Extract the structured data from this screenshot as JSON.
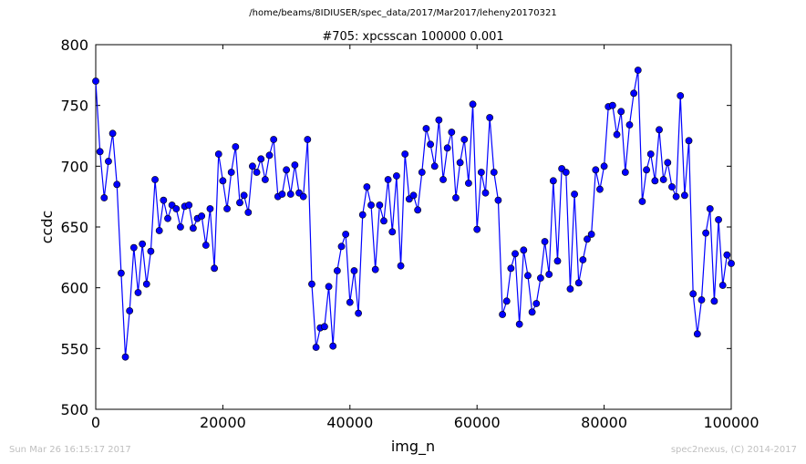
{
  "suptitle": "/home/beams/8IDIUSER/spec_data/2017/Mar2017/leheny20170321",
  "footer": {
    "timestamp": "Sun Mar 26 16:15:17 2017",
    "credit": "spec2nexus, (C) 2014-2017"
  },
  "colors": {
    "series": "#0000ff",
    "marker_fill": "#0000ff",
    "marker_edge": "#000000"
  },
  "chart_data": {
    "type": "line",
    "title": "#705: xpcsscan 100000 0.001",
    "xlabel": "img_n",
    "ylabel": "ccdc",
    "xlim": [
      0,
      100000
    ],
    "ylim": [
      500,
      800
    ],
    "xticks": [
      0,
      20000,
      40000,
      60000,
      80000,
      100000
    ],
    "yticks": [
      500,
      550,
      600,
      650,
      700,
      750,
      800
    ],
    "grid": false,
    "x": [
      0,
      667,
      1333,
      2000,
      2667,
      3333,
      4000,
      4667,
      5333,
      6000,
      6667,
      7333,
      8000,
      8667,
      9333,
      10000,
      10667,
      11333,
      12000,
      12667,
      13333,
      14000,
      14667,
      15333,
      16000,
      16667,
      17333,
      18000,
      18667,
      19333,
      20000,
      20667,
      21333,
      22000,
      22667,
      23333,
      24000,
      24667,
      25333,
      26000,
      26667,
      27333,
      28000,
      28667,
      29333,
      30000,
      30667,
      31333,
      32000,
      32667,
      33333,
      34000,
      34667,
      35333,
      36000,
      36667,
      37333,
      38000,
      38667,
      39333,
      40000,
      40667,
      41333,
      42000,
      42667,
      43333,
      44000,
      44667,
      45333,
      46000,
      46667,
      47333,
      48000,
      48667,
      49333,
      50000,
      50667,
      51333,
      52000,
      52667,
      53333,
      54000,
      54667,
      55333,
      56000,
      56667,
      57333,
      58000,
      58667,
      59333,
      60000,
      60667,
      61333,
      62000,
      62667,
      63333,
      64000,
      64667,
      65333,
      66000,
      66667,
      67333,
      68000,
      68667,
      69333,
      70000,
      70667,
      71333,
      72000,
      72667,
      73333,
      74000,
      74667,
      75333,
      76000,
      76667,
      77333,
      78000,
      78667,
      79333,
      80000,
      80667,
      81333,
      82000,
      82667,
      83333,
      84000,
      84667,
      85333,
      86000,
      86667,
      87333,
      88000,
      88667,
      89333,
      90000,
      90667,
      91333,
      92000,
      92667,
      93333,
      94000,
      94667,
      95333,
      96000,
      96667,
      97333,
      98000,
      98667,
      99333,
      100000
    ],
    "series": [
      {
        "values": [
          770,
          712,
          674,
          704,
          727,
          685,
          612,
          543,
          581,
          633,
          596,
          636,
          603,
          630,
          689,
          647,
          672,
          657,
          668,
          665,
          650,
          667,
          668,
          649,
          657,
          659,
          635,
          665,
          616,
          710,
          688,
          665,
          695,
          716,
          670,
          676,
          662,
          700,
          695,
          706,
          689,
          709,
          722,
          675,
          677,
          697,
          677,
          701,
          678,
          675,
          722,
          603,
          551,
          567,
          568,
          601,
          552,
          614,
          634,
          644,
          588,
          614,
          579,
          660,
          683,
          668,
          615,
          668,
          655,
          689,
          646,
          692,
          618,
          710,
          673,
          676,
          664,
          695,
          731,
          718,
          700,
          738,
          689,
          715,
          728,
          674,
          703,
          722,
          686,
          751,
          648,
          695,
          678,
          740,
          695,
          672,
          578,
          589,
          616,
          628,
          570,
          631,
          610,
          580,
          587,
          608,
          638,
          611,
          688,
          622,
          698,
          695,
          599,
          677,
          604,
          623,
          640,
          644,
          697,
          681,
          700,
          749,
          750,
          726,
          745,
          695,
          734,
          760,
          779,
          671,
          697,
          710,
          688,
          730,
          689,
          703,
          683,
          675,
          758,
          676,
          721,
          595,
          562,
          590,
          645,
          665,
          589,
          656,
          602,
          627,
          620
        ]
      }
    ]
  }
}
